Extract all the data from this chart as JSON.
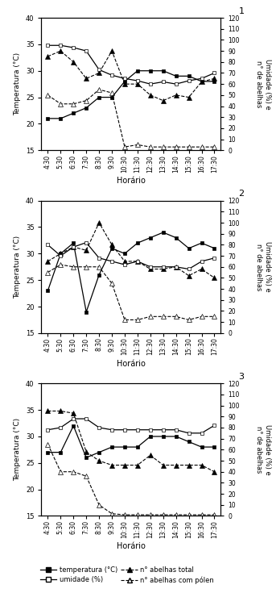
{
  "x_labels": [
    "4:30",
    "5:30",
    "6:30",
    "7:30",
    "8:30",
    "9:30",
    "10:30",
    "11:30",
    "12:30",
    "13:30",
    "14:30",
    "15:30",
    "16:30",
    "17:30"
  ],
  "subplot1": {
    "temp": [
      21,
      21,
      22,
      23,
      25,
      25,
      28,
      30,
      30,
      30,
      29,
      29,
      28,
      28
    ],
    "umid": [
      95,
      95,
      93,
      90,
      73,
      68,
      65,
      63,
      60,
      62,
      60,
      63,
      65,
      70
    ],
    "total": [
      85,
      90,
      80,
      65,
      70,
      90,
      60,
      60,
      50,
      45,
      50,
      48,
      62,
      65
    ],
    "polen": [
      50,
      42,
      42,
      45,
      55,
      52,
      3,
      5,
      3,
      3,
      3,
      3,
      3,
      3
    ]
  },
  "subplot2": {
    "temp": [
      23,
      30,
      32,
      19,
      26,
      31,
      30,
      32,
      33,
      34,
      33,
      31,
      32,
      31
    ],
    "umid": [
      80,
      70,
      78,
      82,
      68,
      65,
      62,
      65,
      60,
      60,
      60,
      58,
      65,
      68
    ],
    "total": [
      65,
      72,
      78,
      75,
      100,
      80,
      65,
      65,
      58,
      58,
      60,
      52,
      58,
      50
    ],
    "polen": [
      55,
      62,
      60,
      60,
      60,
      45,
      12,
      12,
      15,
      15,
      15,
      12,
      15,
      15
    ]
  },
  "subplot3": {
    "temp": [
      27,
      27,
      32,
      26,
      27,
      28,
      28,
      28,
      30,
      30,
      30,
      29,
      28,
      28
    ],
    "umid": [
      78,
      80,
      88,
      88,
      80,
      78,
      78,
      78,
      78,
      78,
      78,
      75,
      75,
      82
    ],
    "total": [
      95,
      95,
      93,
      58,
      50,
      46,
      46,
      46,
      55,
      46,
      46,
      46,
      46,
      40
    ],
    "polen": [
      65,
      40,
      40,
      36,
      10,
      2,
      1,
      1,
      1,
      1,
      1,
      1,
      1,
      1
    ]
  },
  "ylim_left": [
    15,
    40
  ],
  "ylim_right": [
    0,
    120
  ],
  "yticks_left": [
    15,
    20,
    25,
    30,
    35,
    40
  ],
  "yticks_right_labels": [
    0,
    10,
    20,
    30,
    40,
    50,
    60,
    70,
    80,
    90,
    100,
    110,
    120
  ],
  "xlabel": "Horário",
  "ylabel_left": "Temperatura (°C)",
  "ylabel_right": "Umidade (%) e\nn° de abelhas",
  "panel_numbers": [
    "1",
    "2",
    "3"
  ]
}
